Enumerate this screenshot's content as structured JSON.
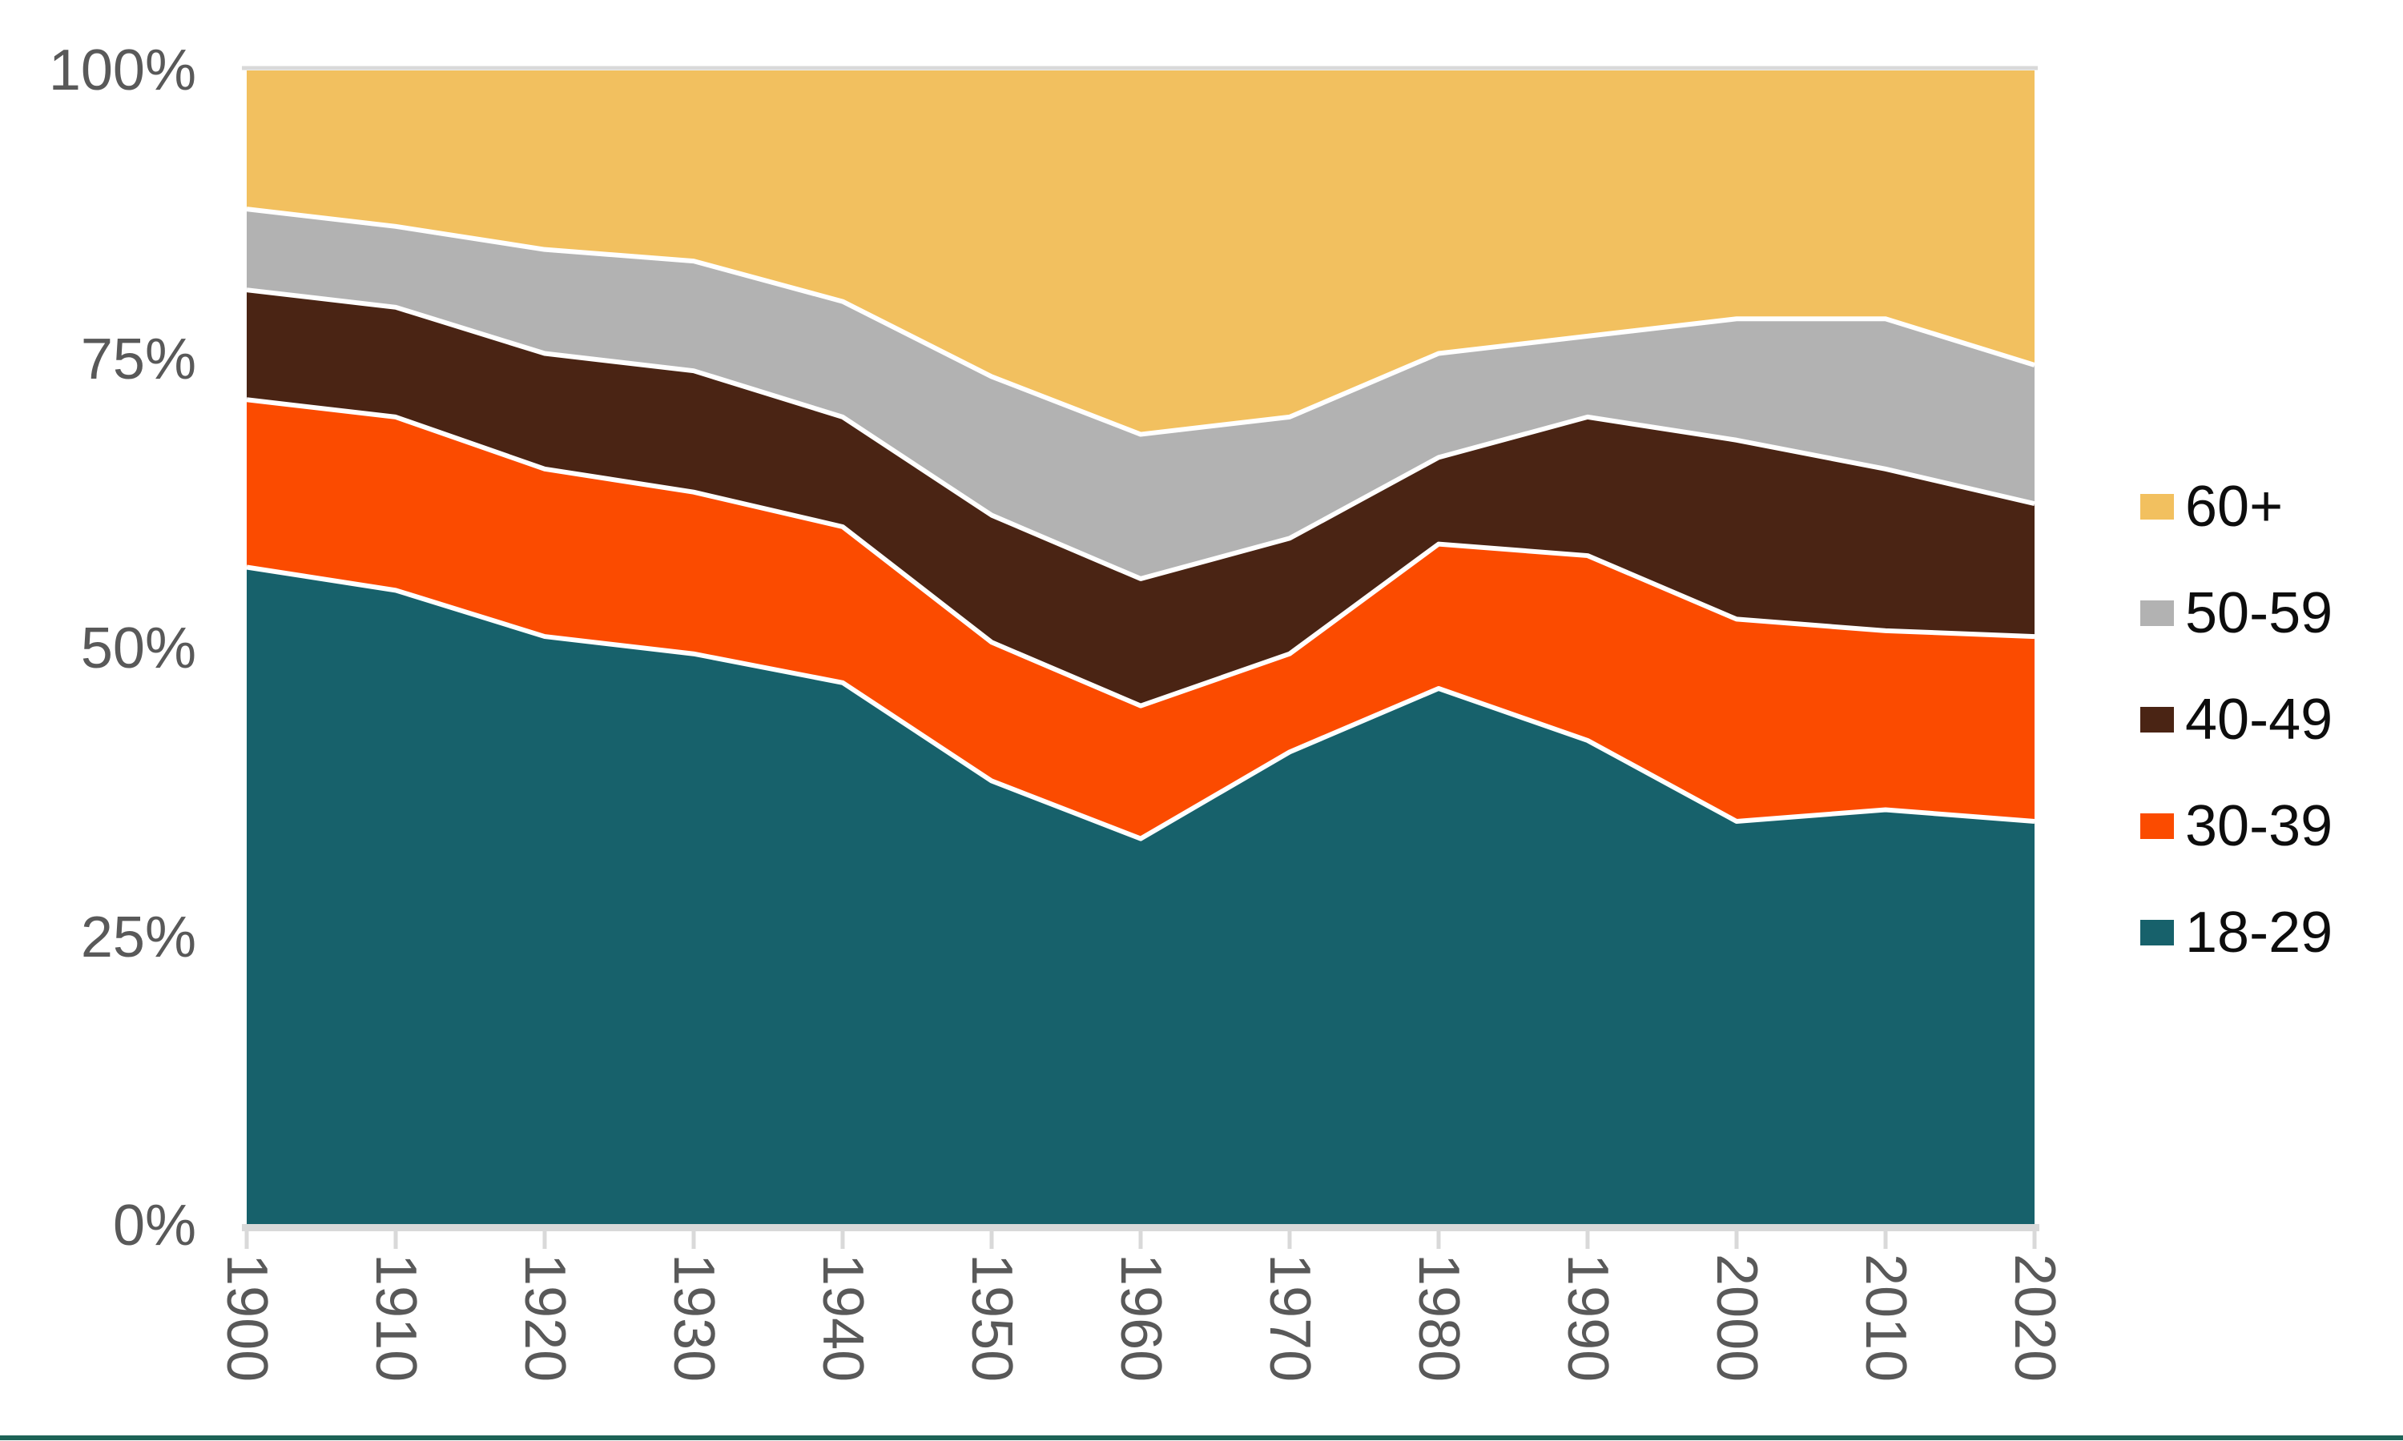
{
  "chart_data": {
    "type": "area",
    "stacking": "percent",
    "title": "",
    "xlabel": "",
    "ylabel": "",
    "ylim": [
      0,
      100
    ],
    "grid": "baseline and 100% top line only",
    "legend_position": "right",
    "x": [
      1900,
      1910,
      1920,
      1930,
      1940,
      1950,
      1960,
      1970,
      1980,
      1990,
      2000,
      2010,
      2020
    ],
    "series": [
      {
        "name": "18-29",
        "color": "#17616B",
        "values": [
          57,
          55,
          51,
          49.5,
          47,
          38.5,
          33.5,
          41,
          46.5,
          42,
          35,
          36,
          35
        ]
      },
      {
        "name": "30-39",
        "color": "#FB4B00",
        "values": [
          14.5,
          15,
          14.5,
          14,
          13.5,
          12,
          11.5,
          8.5,
          12.5,
          16,
          17.5,
          15.5,
          16
        ]
      },
      {
        "name": "40-49",
        "color": "#4A2414",
        "values": [
          9.5,
          9.5,
          10,
          10.5,
          9.5,
          11,
          11,
          10,
          7.5,
          12,
          15.5,
          14,
          11.5
        ]
      },
      {
        "name": "50-59",
        "color": "#B2B2B2",
        "values": [
          7,
          7,
          9,
          9.5,
          10,
          12,
          12.5,
          10.5,
          9,
          7,
          10.5,
          13,
          12
        ]
      },
      {
        "name": "60+",
        "color": "#F2C05F",
        "values": [
          12,
          13.5,
          15.5,
          16.5,
          20,
          26.5,
          31.5,
          30,
          24.5,
          23,
          21.5,
          21.5,
          25.5
        ]
      }
    ],
    "y_tick_labels": [
      "100%",
      "75%",
      "50%",
      "25%",
      "0%"
    ],
    "separator_color": "#ffffff",
    "axis_color": "#D9D9D9",
    "tick_label_color": "#595959"
  },
  "legend": {
    "items": [
      {
        "label": "60+",
        "color": "#F2C05F"
      },
      {
        "label": "50-59",
        "color": "#B2B2B2"
      },
      {
        "label": "40-49",
        "color": "#4A2414"
      },
      {
        "label": "30-39",
        "color": "#FB4B00"
      },
      {
        "label": "18-29",
        "color": "#17616B"
      }
    ]
  },
  "footer": {
    "rule_color": "#1D6356"
  }
}
